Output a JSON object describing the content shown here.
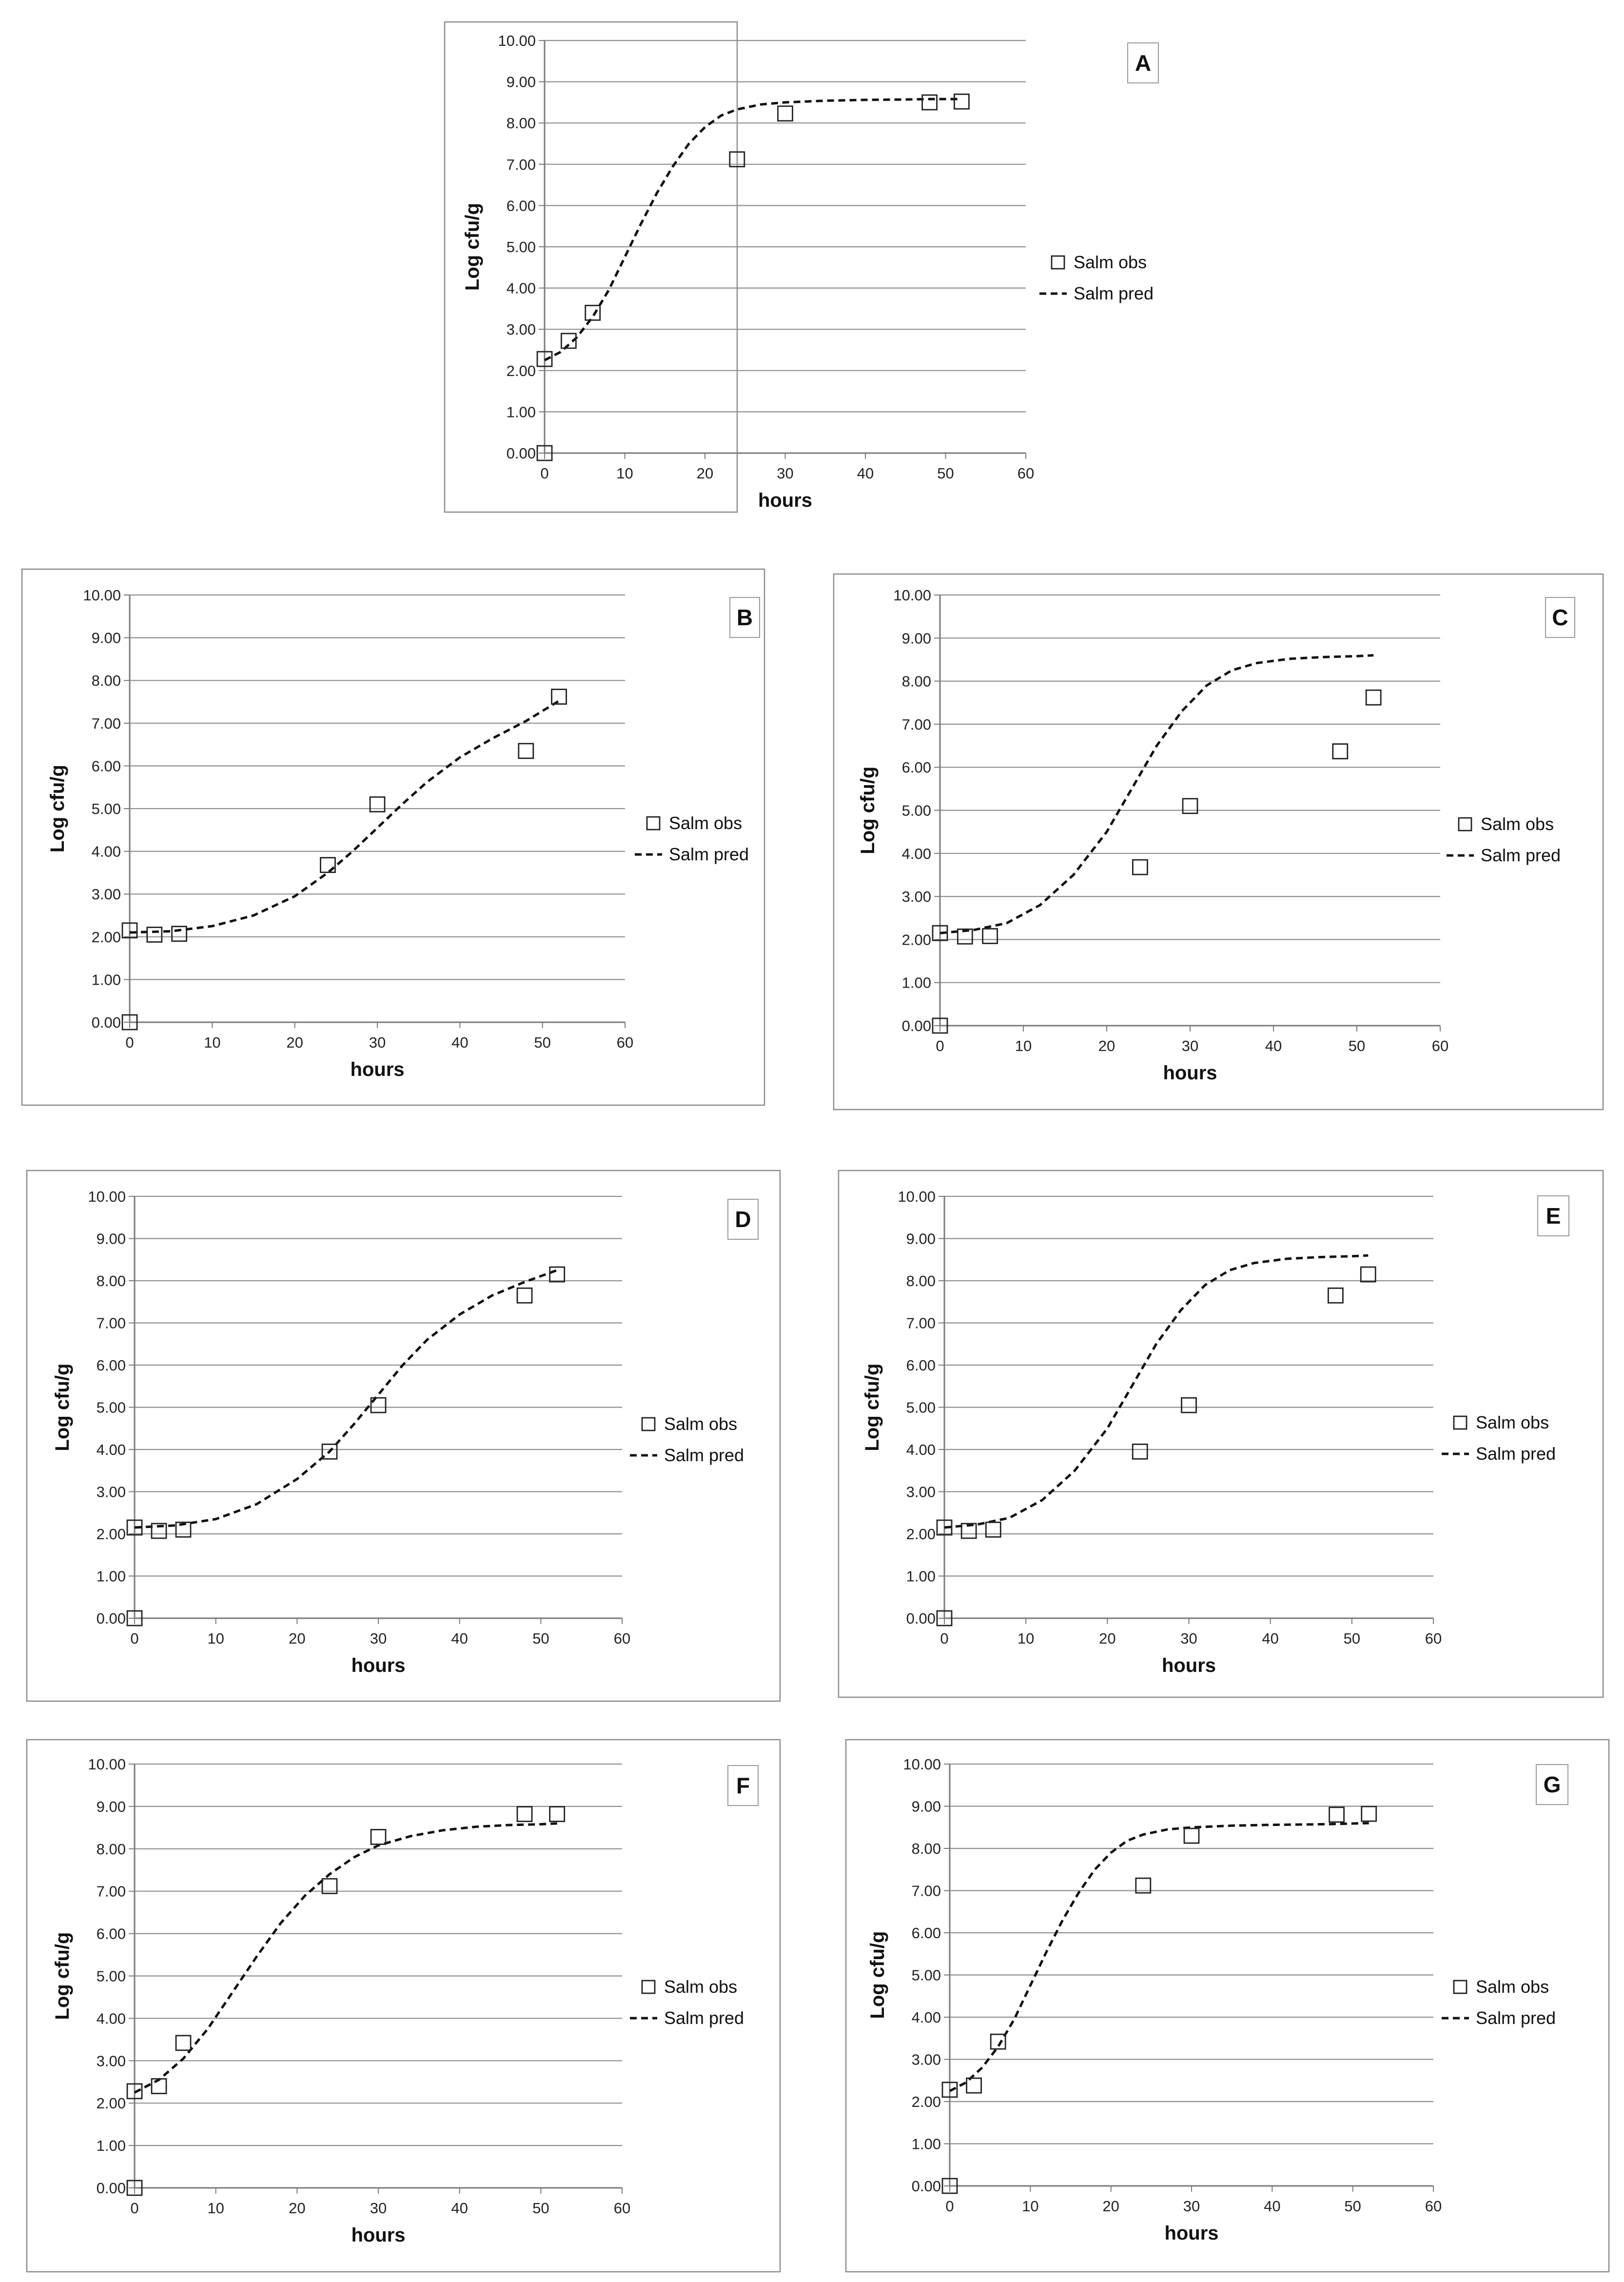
{
  "chart_data": [
    {
      "type": "scatter+line",
      "panel_label": "A",
      "xlabel": "hours",
      "ylabel": "Log cfu/g",
      "xlim": [
        0,
        60
      ],
      "ylim": [
        0,
        10
      ],
      "x_ticks": [
        "0",
        "10",
        "20",
        "30",
        "40",
        "50",
        "60"
      ],
      "y_ticks": [
        "0.00",
        "1.00",
        "2.00",
        "3.00",
        "4.00",
        "5.00",
        "6.00",
        "7.00",
        "8.00",
        "9.00",
        "10.00"
      ],
      "series": [
        {
          "name": "Salm obs",
          "kind": "markers",
          "points": [
            [
              0,
              0
            ],
            [
              0,
              2.28
            ],
            [
              3,
              2.72
            ],
            [
              6,
              3.4
            ],
            [
              24,
              7.12
            ],
            [
              30,
              8.23
            ],
            [
              48,
              8.5
            ],
            [
              52,
              8.52
            ]
          ]
        },
        {
          "name": "Salm pred",
          "kind": "dashed-line",
          "points": [
            [
              0,
              2.25
            ],
            [
              2,
              2.45
            ],
            [
              4,
              2.8
            ],
            [
              6,
              3.3
            ],
            [
              8,
              3.95
            ],
            [
              10,
              4.75
            ],
            [
              12,
              5.55
            ],
            [
              14,
              6.3
            ],
            [
              16,
              6.95
            ],
            [
              18,
              7.5
            ],
            [
              20,
              7.9
            ],
            [
              22,
              8.18
            ],
            [
              24,
              8.33
            ],
            [
              27,
              8.45
            ],
            [
              30,
              8.5
            ],
            [
              35,
              8.54
            ],
            [
              40,
              8.56
            ],
            [
              45,
              8.57
            ],
            [
              48,
              8.58
            ],
            [
              52,
              8.58
            ]
          ]
        }
      ]
    },
    {
      "type": "scatter+line",
      "panel_label": "B",
      "xlabel": "hours",
      "ylabel": "Log cfu/g",
      "xlim": [
        0,
        60
      ],
      "ylim": [
        0,
        10
      ],
      "x_ticks": [
        "0",
        "10",
        "20",
        "30",
        "40",
        "50",
        "60"
      ],
      "y_ticks": [
        "0.00",
        "1.00",
        "2.00",
        "3.00",
        "4.00",
        "5.00",
        "6.00",
        "7.00",
        "8.00",
        "9.00",
        "10.00"
      ],
      "series": [
        {
          "name": "Salm obs",
          "kind": "markers",
          "points": [
            [
              0,
              0
            ],
            [
              0,
              2.15
            ],
            [
              3,
              2.05
            ],
            [
              6,
              2.07
            ],
            [
              24,
              3.68
            ],
            [
              30,
              5.1
            ],
            [
              48,
              6.35
            ],
            [
              52,
              7.62
            ]
          ]
        },
        {
          "name": "Salm pred",
          "kind": "dashed-line",
          "points": [
            [
              0,
              2.1
            ],
            [
              5,
              2.13
            ],
            [
              10,
              2.25
            ],
            [
              15,
              2.5
            ],
            [
              20,
              2.95
            ],
            [
              24,
              3.5
            ],
            [
              27,
              4.0
            ],
            [
              30,
              4.55
            ],
            [
              33,
              5.1
            ],
            [
              36,
              5.62
            ],
            [
              40,
              6.2
            ],
            [
              44,
              6.65
            ],
            [
              48,
              7.05
            ],
            [
              52,
              7.52
            ]
          ]
        }
      ]
    },
    {
      "type": "scatter+line",
      "panel_label": "C",
      "xlabel": "hours",
      "ylabel": "Log cfu/g",
      "xlim": [
        0,
        60
      ],
      "ylim": [
        0,
        10
      ],
      "x_ticks": [
        "0",
        "10",
        "20",
        "30",
        "40",
        "50",
        "60"
      ],
      "y_ticks": [
        "0.00",
        "1.00",
        "2.00",
        "3.00",
        "4.00",
        "5.00",
        "6.00",
        "7.00",
        "8.00",
        "9.00",
        "10.00"
      ],
      "series": [
        {
          "name": "Salm obs",
          "kind": "markers",
          "points": [
            [
              0,
              0
            ],
            [
              0,
              2.15
            ],
            [
              3,
              2.07
            ],
            [
              6,
              2.08
            ],
            [
              24,
              3.68
            ],
            [
              30,
              5.1
            ],
            [
              48,
              6.37
            ],
            [
              52,
              7.62
            ]
          ]
        },
        {
          "name": "Salm pred",
          "kind": "dashed-line",
          "points": [
            [
              0,
              2.15
            ],
            [
              4,
              2.22
            ],
            [
              8,
              2.38
            ],
            [
              12,
              2.8
            ],
            [
              16,
              3.5
            ],
            [
              20,
              4.5
            ],
            [
              23,
              5.5
            ],
            [
              26,
              6.5
            ],
            [
              29,
              7.3
            ],
            [
              32,
              7.9
            ],
            [
              35,
              8.25
            ],
            [
              38,
              8.42
            ],
            [
              42,
              8.52
            ],
            [
              46,
              8.56
            ],
            [
              50,
              8.58
            ],
            [
              52,
              8.6
            ]
          ]
        }
      ]
    },
    {
      "type": "scatter+line",
      "panel_label": "D",
      "xlabel": "hours",
      "ylabel": "Log cfu/g",
      "xlim": [
        0,
        60
      ],
      "ylim": [
        0,
        10
      ],
      "x_ticks": [
        "0",
        "10",
        "20",
        "30",
        "40",
        "50",
        "60"
      ],
      "y_ticks": [
        "0.00",
        "1.00",
        "2.00",
        "3.00",
        "4.00",
        "5.00",
        "6.00",
        "7.00",
        "8.00",
        "9.00",
        "10.00"
      ],
      "series": [
        {
          "name": "Salm obs",
          "kind": "markers",
          "points": [
            [
              0,
              0
            ],
            [
              0,
              2.15
            ],
            [
              3,
              2.07
            ],
            [
              6,
              2.1
            ],
            [
              24,
              3.95
            ],
            [
              30,
              5.05
            ],
            [
              48,
              7.65
            ],
            [
              52,
              8.15
            ]
          ]
        },
        {
          "name": "Salm pred",
          "kind": "dashed-line",
          "points": [
            [
              0,
              2.15
            ],
            [
              5,
              2.2
            ],
            [
              10,
              2.35
            ],
            [
              15,
              2.7
            ],
            [
              20,
              3.3
            ],
            [
              24,
              3.95
            ],
            [
              27,
              4.6
            ],
            [
              30,
              5.3
            ],
            [
              33,
              6.0
            ],
            [
              36,
              6.6
            ],
            [
              40,
              7.2
            ],
            [
              44,
              7.65
            ],
            [
              48,
              7.97
            ],
            [
              52,
              8.25
            ]
          ]
        }
      ]
    },
    {
      "type": "scatter+line",
      "panel_label": "E",
      "xlabel": "hours",
      "ylabel": "Log cfu/g",
      "xlim": [
        0,
        60
      ],
      "ylim": [
        0,
        10
      ],
      "x_ticks": [
        "0",
        "10",
        "20",
        "30",
        "40",
        "50",
        "60"
      ],
      "y_ticks": [
        "0.00",
        "1.00",
        "2.00",
        "3.00",
        "4.00",
        "5.00",
        "6.00",
        "7.00",
        "8.00",
        "9.00",
        "10.00"
      ],
      "series": [
        {
          "name": "Salm obs",
          "kind": "markers",
          "points": [
            [
              0,
              0
            ],
            [
              0,
              2.15
            ],
            [
              3,
              2.07
            ],
            [
              6,
              2.1
            ],
            [
              24,
              3.95
            ],
            [
              30,
              5.05
            ],
            [
              48,
              7.65
            ],
            [
              52,
              8.15
            ]
          ]
        },
        {
          "name": "Salm pred",
          "kind": "dashed-line",
          "points": [
            [
              0,
              2.15
            ],
            [
              4,
              2.22
            ],
            [
              8,
              2.38
            ],
            [
              12,
              2.8
            ],
            [
              16,
              3.5
            ],
            [
              20,
              4.5
            ],
            [
              23,
              5.5
            ],
            [
              26,
              6.5
            ],
            [
              29,
              7.3
            ],
            [
              32,
              7.9
            ],
            [
              35,
              8.25
            ],
            [
              38,
              8.42
            ],
            [
              42,
              8.52
            ],
            [
              46,
              8.56
            ],
            [
              50,
              8.58
            ],
            [
              52,
              8.6
            ]
          ]
        }
      ]
    },
    {
      "type": "scatter+line",
      "panel_label": "F",
      "xlabel": "hours",
      "ylabel": "Log cfu/g",
      "xlim": [
        0,
        60
      ],
      "ylim": [
        0,
        10
      ],
      "x_ticks": [
        "0",
        "10",
        "20",
        "30",
        "40",
        "50",
        "60"
      ],
      "y_ticks": [
        "0.00",
        "1.00",
        "2.00",
        "3.00",
        "4.00",
        "5.00",
        "6.00",
        "7.00",
        "8.00",
        "9.00",
        "10.00"
      ],
      "series": [
        {
          "name": "Salm obs",
          "kind": "markers",
          "points": [
            [
              0,
              0
            ],
            [
              0,
              2.28
            ],
            [
              3,
              2.4
            ],
            [
              6,
              3.42
            ],
            [
              24,
              7.12
            ],
            [
              30,
              8.28
            ],
            [
              48,
              8.82
            ],
            [
              52,
              8.82
            ]
          ]
        },
        {
          "name": "Salm pred",
          "kind": "dashed-line",
          "points": [
            [
              0,
              2.25
            ],
            [
              3,
              2.55
            ],
            [
              6,
              3.05
            ],
            [
              9,
              3.75
            ],
            [
              12,
              4.6
            ],
            [
              15,
              5.45
            ],
            [
              18,
              6.25
            ],
            [
              21,
              6.9
            ],
            [
              24,
              7.4
            ],
            [
              27,
              7.8
            ],
            [
              30,
              8.08
            ],
            [
              34,
              8.3
            ],
            [
              38,
              8.44
            ],
            [
              42,
              8.52
            ],
            [
              46,
              8.56
            ],
            [
              50,
              8.58
            ],
            [
              52,
              8.6
            ]
          ]
        }
      ]
    },
    {
      "type": "scatter+line",
      "panel_label": "G",
      "xlabel": "hours",
      "ylabel": "Log cfu/g",
      "xlim": [
        0,
        60
      ],
      "ylim": [
        0,
        10
      ],
      "x_ticks": [
        "0",
        "10",
        "20",
        "30",
        "40",
        "50",
        "60"
      ],
      "y_ticks": [
        "0.00",
        "1.00",
        "2.00",
        "3.00",
        "4.00",
        "5.00",
        "6.00",
        "7.00",
        "8.00",
        "9.00",
        "10.00"
      ],
      "series": [
        {
          "name": "Salm obs",
          "kind": "markers",
          "points": [
            [
              0,
              0
            ],
            [
              0,
              2.28
            ],
            [
              3,
              2.38
            ],
            [
              6,
              3.42
            ],
            [
              24,
              7.12
            ],
            [
              30,
              8.3
            ],
            [
              48,
              8.8
            ],
            [
              52,
              8.82
            ]
          ]
        },
        {
          "name": "Salm pred",
          "kind": "dashed-line",
          "points": [
            [
              0,
              2.25
            ],
            [
              2,
              2.45
            ],
            [
              4,
              2.8
            ],
            [
              6,
              3.3
            ],
            [
              8,
              3.95
            ],
            [
              10,
              4.75
            ],
            [
              12,
              5.55
            ],
            [
              14,
              6.3
            ],
            [
              16,
              6.95
            ],
            [
              18,
              7.5
            ],
            [
              20,
              7.9
            ],
            [
              22,
              8.18
            ],
            [
              24,
              8.33
            ],
            [
              27,
              8.45
            ],
            [
              30,
              8.5
            ],
            [
              35,
              8.54
            ],
            [
              40,
              8.56
            ],
            [
              45,
              8.57
            ],
            [
              48,
              8.58
            ],
            [
              52,
              8.6
            ]
          ]
        }
      ]
    }
  ]
}
